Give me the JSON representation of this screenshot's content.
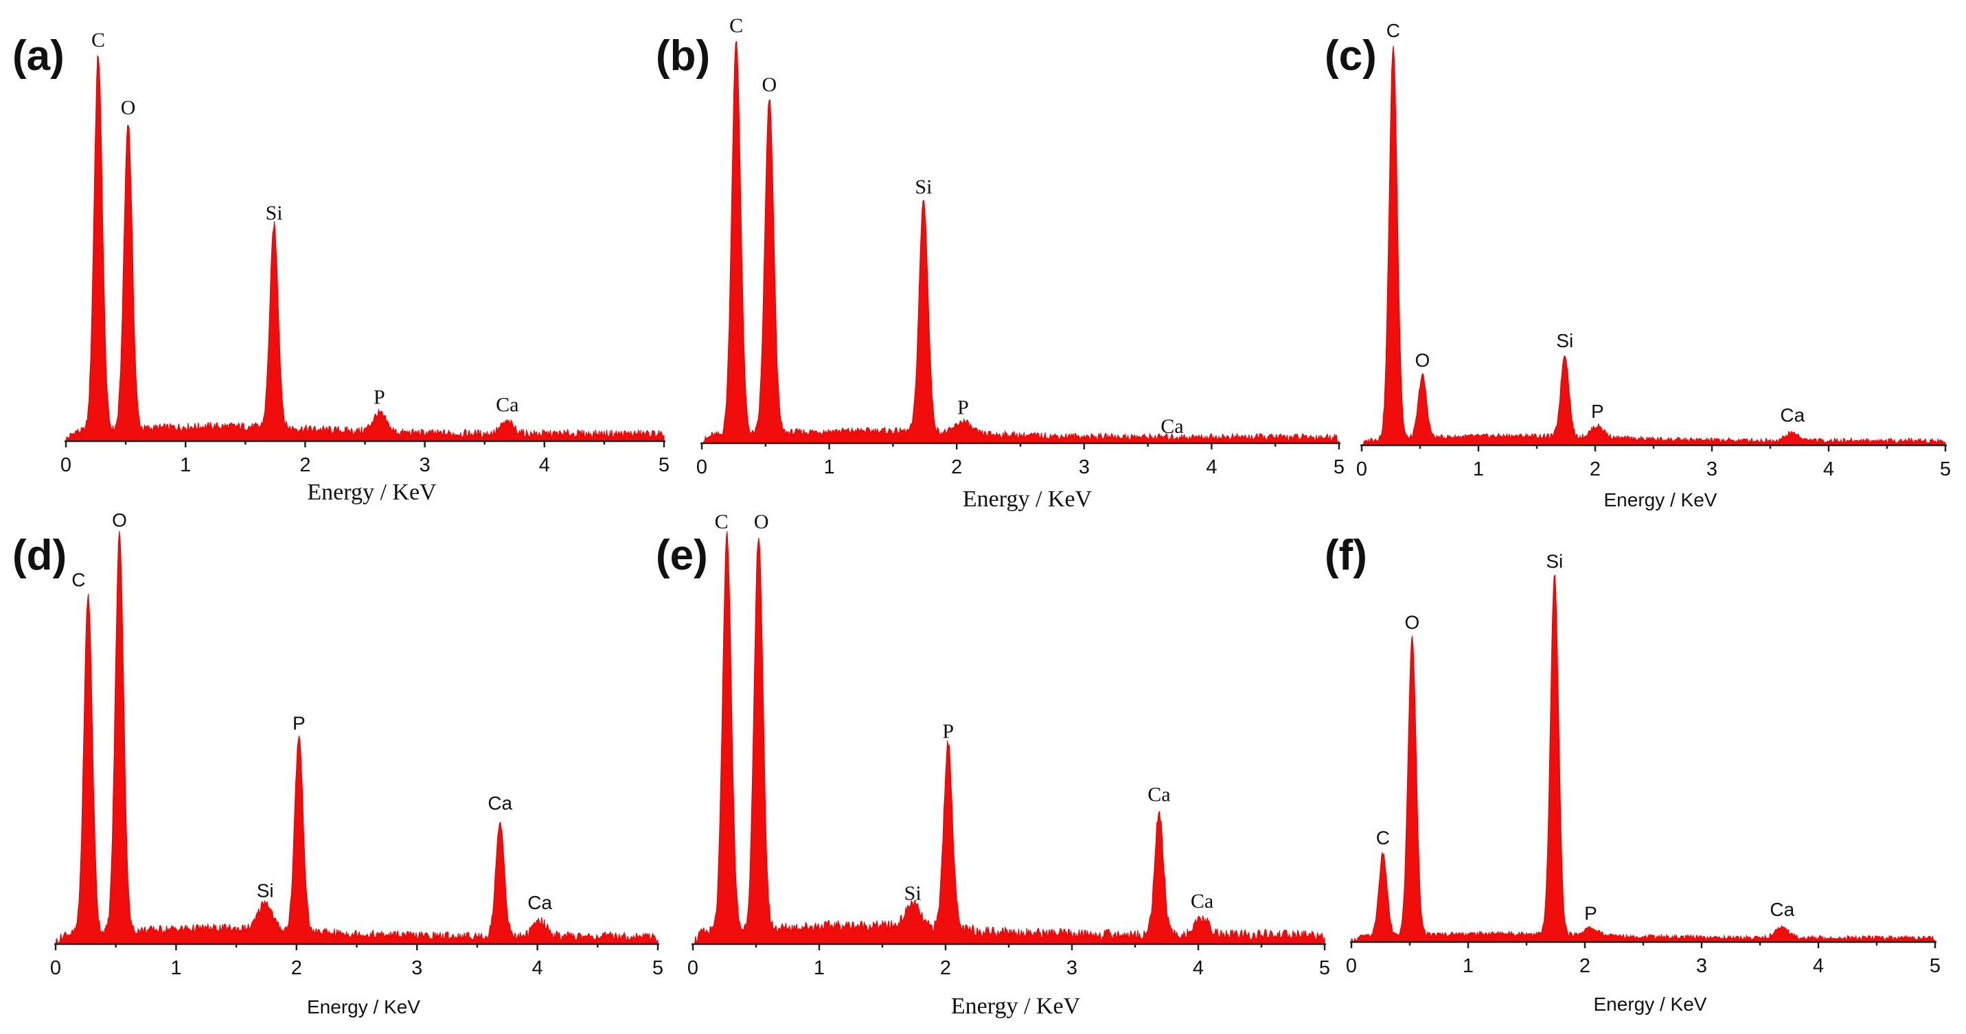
{
  "chart_data": [
    {
      "type": "area",
      "panel_label": "(a)",
      "xlabel": "Energy / KeV",
      "xlim": [
        0,
        5
      ],
      "x_ticks": [
        "0",
        "1",
        "2",
        "3",
        "4",
        "5"
      ],
      "ylim": [
        0,
        100
      ],
      "baseline": 2.5,
      "font_style": "serif",
      "peaks": [
        {
          "element": "C",
          "energy": 0.27,
          "height": 100
        },
        {
          "element": "O",
          "energy": 0.52,
          "height": 82
        },
        {
          "element": "Si",
          "energy": 1.74,
          "height": 54
        },
        {
          "element": "P",
          "energy": 2.62,
          "height": 5
        },
        {
          "element": "Ca",
          "energy": 3.69,
          "height": 3
        }
      ]
    },
    {
      "type": "area",
      "panel_label": "(b)",
      "xlabel": "Energy / KeV",
      "xlim": [
        0,
        5
      ],
      "x_ticks": [
        "0",
        "1",
        "2",
        "3",
        "4",
        "5"
      ],
      "ylim": [
        0,
        100
      ],
      "baseline": 2.0,
      "font_style": "serif",
      "peaks": [
        {
          "element": "C",
          "energy": 0.27,
          "height": 100
        },
        {
          "element": "O",
          "energy": 0.53,
          "height": 85
        },
        {
          "element": "Si",
          "energy": 1.74,
          "height": 59
        },
        {
          "element": "P",
          "energy": 2.05,
          "height": 3
        },
        {
          "element": "Ca",
          "energy": 3.69,
          "height": 0
        }
      ]
    },
    {
      "type": "area",
      "panel_label": "(c)",
      "xlabel": "Energy / KeV",
      "xlim": [
        0,
        5
      ],
      "x_ticks": [
        "0",
        "1",
        "2",
        "3",
        "4",
        "5"
      ],
      "ylim": [
        0,
        100
      ],
      "baseline": 1.5,
      "font_style": "sans",
      "peaks": [
        {
          "element": "C",
          "energy": 0.27,
          "height": 100
        },
        {
          "element": "O",
          "energy": 0.52,
          "height": 16
        },
        {
          "element": "Si",
          "energy": 1.74,
          "height": 21
        },
        {
          "element": "P",
          "energy": 2.02,
          "height": 3
        },
        {
          "element": "Ca",
          "energy": 3.69,
          "height": 2
        }
      ]
    },
    {
      "type": "area",
      "panel_label": "(d)",
      "xlabel": "Energy / KeV",
      "xlim": [
        0,
        5
      ],
      "x_ticks": [
        "0",
        "1",
        "2",
        "3",
        "4",
        "5"
      ],
      "ylim": [
        0,
        100
      ],
      "baseline": 2.5,
      "font_style": "sans",
      "peaks": [
        {
          "element": "C",
          "energy": 0.27,
          "height": 85
        },
        {
          "element": "O",
          "energy": 0.53,
          "height": 100
        },
        {
          "element": "Si",
          "energy": 1.74,
          "height": 7
        },
        {
          "element": "P",
          "energy": 2.02,
          "height": 49
        },
        {
          "element": "Ca",
          "energy": 3.69,
          "height": 29
        },
        {
          "element": "Ca",
          "energy": 4.02,
          "height": 4
        }
      ]
    },
    {
      "type": "area",
      "panel_label": "(e)",
      "xlabel": "Energy / KeV",
      "xlim": [
        0,
        5
      ],
      "x_ticks": [
        "0",
        "1",
        "2",
        "3",
        "4",
        "5"
      ],
      "ylim": [
        0,
        100
      ],
      "baseline": 3.0,
      "font_style": "serif",
      "peaks": [
        {
          "element": "C",
          "energy": 0.27,
          "height": 100
        },
        {
          "element": "O",
          "energy": 0.52,
          "height": 100
        },
        {
          "element": "Si",
          "energy": 1.74,
          "height": 6
        },
        {
          "element": "P",
          "energy": 2.02,
          "height": 47
        },
        {
          "element": "Ca",
          "energy": 3.69,
          "height": 31
        },
        {
          "element": "Ca",
          "energy": 4.03,
          "height": 4
        }
      ]
    },
    {
      "type": "area",
      "panel_label": "(f)",
      "xlabel": "Energy / KeV",
      "xlim": [
        0,
        5
      ],
      "x_ticks": [
        "0",
        "1",
        "2",
        "3",
        "4",
        "5"
      ],
      "ylim": [
        0,
        100
      ],
      "baseline": 1.5,
      "font_style": "sans",
      "peaks": [
        {
          "element": "C",
          "energy": 0.27,
          "height": 23
        },
        {
          "element": "O",
          "energy": 0.52,
          "height": 83
        },
        {
          "element": "Si",
          "energy": 1.74,
          "height": 100
        },
        {
          "element": "P",
          "energy": 2.05,
          "height": 2
        },
        {
          "element": "Ca",
          "energy": 3.69,
          "height": 3
        }
      ]
    }
  ]
}
